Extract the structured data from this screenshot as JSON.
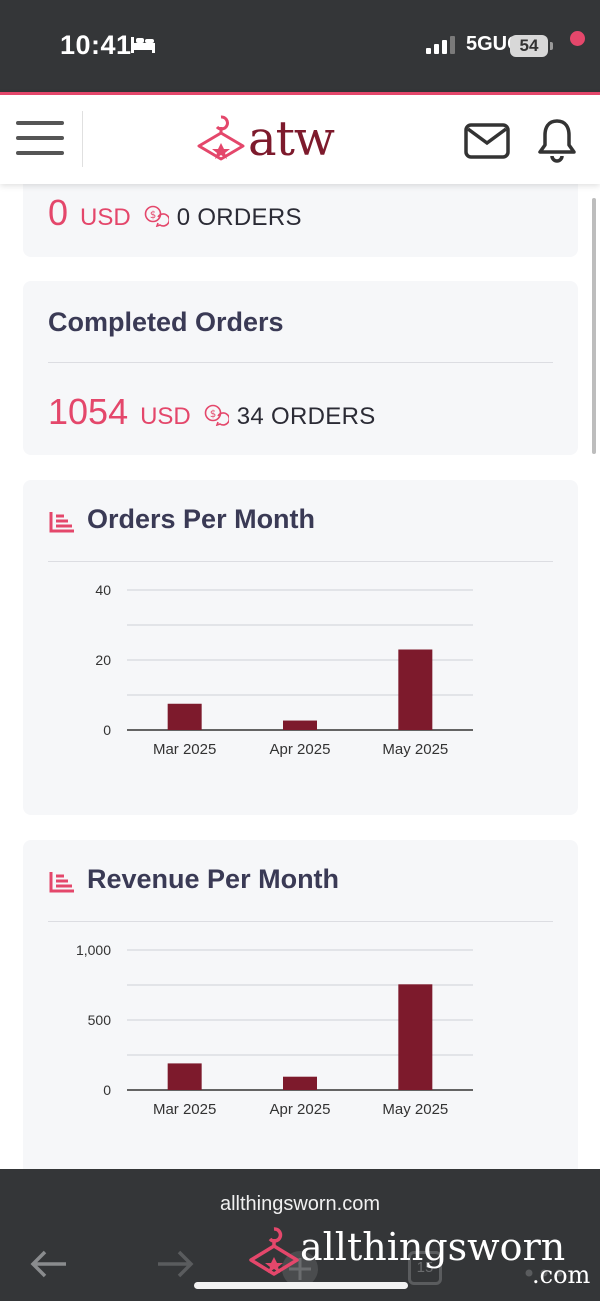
{
  "status_bar": {
    "time": "10:41",
    "network": "5GUC",
    "battery": "54"
  },
  "header": {
    "logo_text": "atw",
    "brand_color": "#7d1a2c",
    "accent_color": "#e4476b"
  },
  "pending_card": {
    "amount": "0",
    "currency": "USD",
    "orders": "0 ORDERS"
  },
  "completed_card": {
    "title": "Completed Orders",
    "amount": "1054",
    "currency": "USD",
    "orders": "34 ORDERS"
  },
  "orders_chart": {
    "title": "Orders Per Month"
  },
  "revenue_chart": {
    "title": "Revenue Per Month"
  },
  "chart_data": [
    {
      "type": "bar",
      "title": "Orders Per Month",
      "categories": [
        "Mar 2025",
        "Apr 2025",
        "May 2025"
      ],
      "values": [
        7.5,
        2.7,
        23
      ],
      "ylim": [
        0,
        40
      ],
      "yticks": [
        "0",
        "20",
        "40"
      ],
      "ygrid_step": 10,
      "bar_color": "#7d1a2c",
      "grid": true
    },
    {
      "type": "bar",
      "title": "Revenue Per Month",
      "categories": [
        "Mar 2025",
        "Apr 2025",
        "May 2025"
      ],
      "values": [
        190,
        95,
        755
      ],
      "ylim": [
        0,
        1000
      ],
      "yticks": [
        "0",
        "500",
        "1,000"
      ],
      "ygrid_step": 250,
      "bar_color": "#7d1a2c",
      "grid": true
    }
  ],
  "browser_bar": {
    "url": "allthingsworn.com",
    "tabs_count": "15",
    "watermark_text": "allthingsworn",
    "watermark_suffix": ".com"
  }
}
